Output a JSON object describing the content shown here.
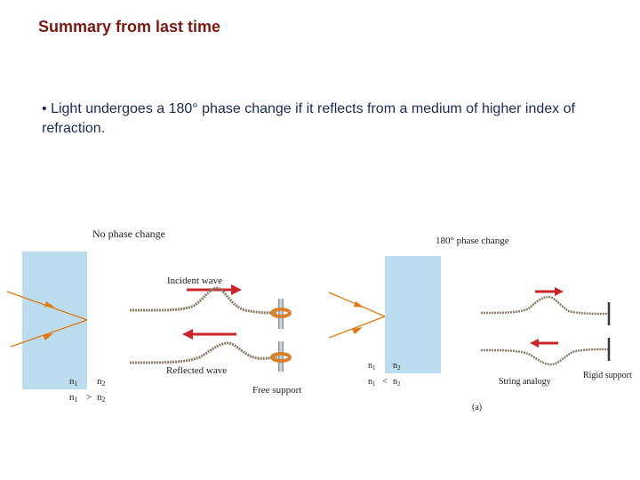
{
  "slide": {
    "title": "Summary from last time",
    "bullet_marker": "•",
    "bullet": "Light undergoes a 180° phase change if it reflects from a medium of higher index of refraction."
  },
  "figure": {
    "left": {
      "heading": "No phase change",
      "incident_label": "Incident wave",
      "reflected_label": "Reflected wave",
      "support_label": "Free support",
      "n1": "n",
      "n1_sub": "1",
      "n2": "n",
      "n2_sub": "2",
      "relation": ">"
    },
    "right": {
      "heading": "180° phase change",
      "string_label": "String analogy",
      "support_label": "Rigid support",
      "caption": "(a)",
      "n1": "n",
      "n1_sub": "1",
      "n2": "n",
      "n2_sub": "2",
      "relation": "<"
    },
    "colors": {
      "medium": "#bcdcf0",
      "ray": "#e07a10",
      "arrow": "#c8262b",
      "string": "#8a7d6a",
      "ring": "#d9822b",
      "post": "#9aa6b4",
      "wall": "#3a3a3a"
    }
  }
}
